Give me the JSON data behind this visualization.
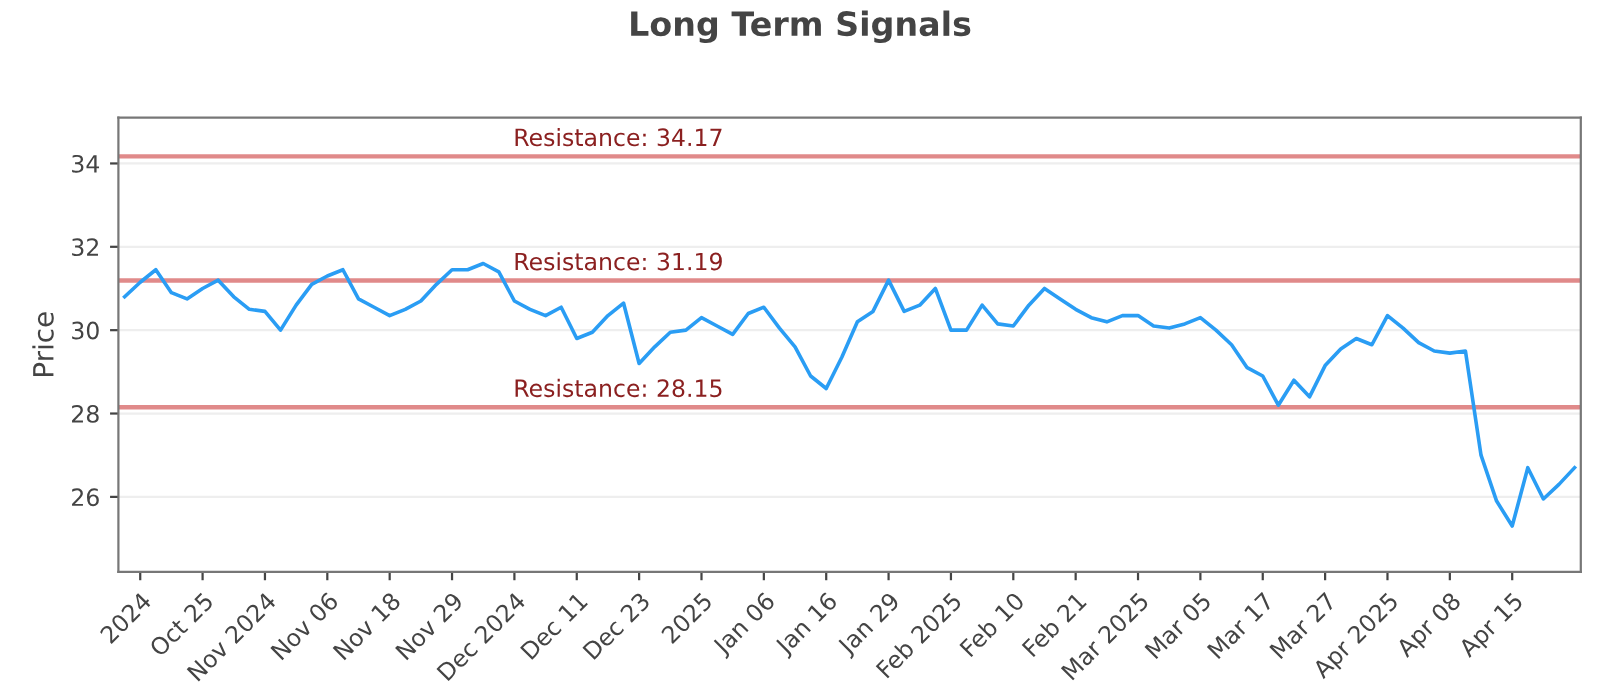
{
  "chart_data": {
    "type": "line",
    "title": "Long Term Signals",
    "ylabel": "Price",
    "categories": [
      null,
      "2024",
      null,
      null,
      null,
      "Oct 25",
      null,
      null,
      null,
      "Nov 2024",
      null,
      null,
      null,
      "Nov 06",
      null,
      null,
      null,
      "Nov 18",
      null,
      null,
      null,
      "Nov 29",
      null,
      null,
      null,
      "Dec 2024",
      null,
      null,
      null,
      "Dec 11",
      null,
      null,
      null,
      "Dec 23",
      null,
      null,
      null,
      "2025",
      null,
      null,
      null,
      "Jan 06",
      null,
      null,
      null,
      "Jan 16",
      null,
      null,
      null,
      "Jan 29",
      null,
      null,
      null,
      "Feb 2025",
      null,
      null,
      null,
      "Feb 10",
      null,
      null,
      null,
      "Feb 21",
      null,
      null,
      null,
      "Mar 2025",
      null,
      null,
      null,
      "Mar 05",
      null,
      null,
      null,
      "Mar 17",
      null,
      null,
      null,
      "Mar 27",
      null,
      null,
      null,
      "Apr 2025",
      null,
      null,
      null,
      "Apr 08",
      null,
      null,
      null,
      "Apr 15",
      null,
      null,
      null,
      null
    ],
    "series": [
      {
        "color": "#2a9df4",
        "values": [
          30.8,
          31.15,
          31.45,
          30.9,
          30.75,
          31.0,
          31.2,
          30.8,
          30.5,
          30.45,
          30.0,
          30.6,
          31.1,
          31.3,
          31.45,
          30.75,
          30.55,
          30.35,
          30.5,
          30.7,
          31.1,
          31.45,
          31.45,
          31.6,
          31.4,
          30.7,
          30.5,
          30.35,
          30.55,
          29.8,
          29.95,
          30.35,
          30.65,
          29.2,
          29.6,
          29.95,
          30.0,
          30.3,
          30.1,
          29.9,
          30.4,
          30.55,
          30.05,
          29.6,
          28.9,
          28.6,
          29.35,
          30.2,
          30.45,
          31.2,
          30.45,
          30.6,
          31.0,
          30.0,
          30.0,
          30.6,
          30.15,
          30.1,
          30.6,
          31.0,
          30.75,
          30.5,
          30.3,
          30.2,
          30.35,
          30.35,
          30.1,
          30.05,
          30.15,
          30.3,
          30.0,
          29.65,
          29.1,
          28.9,
          28.2,
          28.8,
          28.4,
          29.15,
          29.55,
          29.8,
          29.65,
          30.35,
          30.05,
          29.7,
          29.5,
          29.45,
          29.5,
          27.0,
          25.9,
          25.3,
          26.7,
          25.95,
          26.3,
          26.7
        ]
      }
    ],
    "ylim": [
      24.2,
      35.1
    ],
    "yticks": [
      26,
      28,
      30,
      32,
      34
    ],
    "grid": "y",
    "marker": "none",
    "line_style": "solid",
    "ref_lines": [
      {
        "axis": "y",
        "value": 34.17,
        "label": "Resistance: 34.17",
        "color": "#e08a8a"
      },
      {
        "axis": "y",
        "value": 31.19,
        "label": "Resistance: 31.19",
        "color": "#e08a8a"
      },
      {
        "axis": "y",
        "value": 28.15,
        "label": "Resistance: 28.15",
        "color": "#e08a8a"
      }
    ]
  }
}
